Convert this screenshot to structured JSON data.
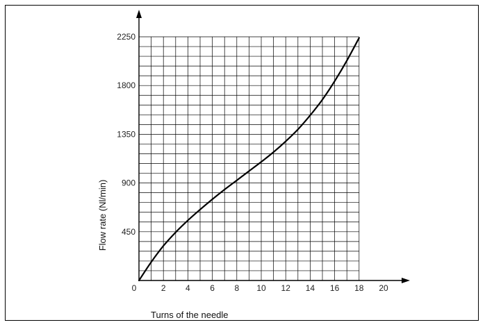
{
  "chart_data": {
    "type": "line",
    "title": "",
    "xlabel": "Turns of the needle",
    "ylabel": "Flow rate (Nl/min)",
    "xlim": [
      0,
      20
    ],
    "ylim": [
      0,
      2250
    ],
    "x_ticks": [
      0,
      2,
      4,
      6,
      8,
      10,
      12,
      14,
      16,
      18,
      20
    ],
    "y_ticks": [
      450,
      900,
      1350,
      1800,
      2250
    ],
    "grid": true,
    "legend": "none",
    "series": [
      {
        "x": [
          0,
          1,
          2,
          3,
          4,
          5,
          6,
          7,
          8,
          9,
          10,
          11,
          12,
          13,
          14,
          15,
          16,
          17,
          18
        ],
        "values": [
          0,
          170,
          320,
          445,
          555,
          655,
          750,
          840,
          925,
          1010,
          1095,
          1185,
          1285,
          1395,
          1525,
          1670,
          1840,
          2030,
          2240
        ]
      }
    ],
    "colors": {
      "line": "#000000",
      "grid": "#000000",
      "background": "#ffffff"
    }
  }
}
